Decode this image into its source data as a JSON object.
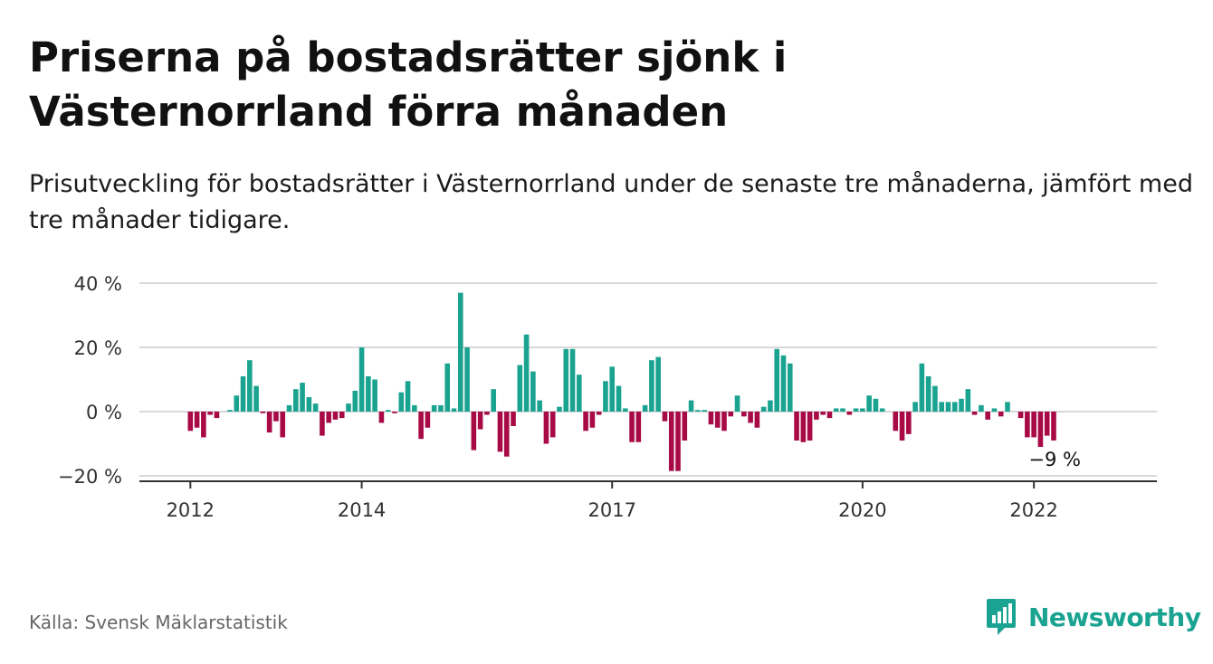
{
  "header": {
    "title": "Priserna på bostadsrätter sjönk i Västernorrland förra månaden",
    "subtitle": "Prisutveckling för bostadsrätter i Västernorrland under de senaste tre månaderna, jämfört med tre månader tidigare."
  },
  "footer": {
    "source": "Källa: Svensk Mäklarstatistik",
    "brand": "Newsworthy",
    "brand_icon": "bar-chart-logo-icon"
  },
  "colors": {
    "positive": "#1aa391",
    "negative": "#a80a46",
    "grid": "#d9d9d9",
    "axis": "#333333",
    "brand": "#1aa391"
  },
  "chart_data": {
    "type": "bar",
    "x_tick_labels": [
      "2012",
      "2014",
      "2017",
      "2020",
      "2022"
    ],
    "y_tick_labels": [
      "40 %",
      "20 %",
      "0 %",
      "−20 %"
    ],
    "y_ticks": [
      40,
      20,
      0,
      -20
    ],
    "ylim": [
      -21,
      40
    ],
    "grid": true,
    "last_value_label": "−9 %",
    "series": [
      {
        "values": [
          -6,
          -5,
          -8,
          -1,
          -2,
          0,
          0.5,
          5,
          11,
          16,
          8,
          -0.5,
          -6.5,
          -3,
          -8,
          2,
          7,
          9,
          4.5,
          2.5,
          -7.5,
          -3.5,
          -2.5,
          -2,
          2.5,
          6.5,
          20,
          11,
          10,
          -3.5,
          0.5,
          -0.5,
          6,
          9.5,
          2,
          -8.5,
          -5,
          2,
          2,
          15,
          1,
          37,
          20,
          -12,
          -5.5,
          -1,
          7,
          -12.5,
          -14,
          -4.5,
          14.5,
          24,
          12.5,
          3.5,
          -10,
          -8,
          1.5,
          19.5,
          19.5,
          11.5,
          -6,
          -5,
          -1,
          9.5,
          14,
          8,
          1,
          -9.5,
          -9.5,
          2,
          16,
          17,
          -3,
          -18.5,
          -18.5,
          -9,
          3.5,
          0.5,
          0.5,
          -4,
          -5,
          -6,
          -1.5,
          5,
          -1.5,
          -3.5,
          -5,
          1.5,
          3.5,
          19.5,
          17.5,
          15,
          -9,
          -9.5,
          -9,
          -2.5,
          -1,
          -2,
          1,
          1,
          -1,
          1,
          1,
          5,
          4,
          1,
          0,
          -6,
          -9,
          -7,
          3,
          15,
          11,
          8,
          3,
          3,
          3,
          4,
          7,
          -1,
          2,
          -2.5,
          1,
          -1.5,
          3,
          0,
          -2,
          -8,
          -8,
          -11,
          -7.5,
          -9
        ]
      }
    ]
  }
}
